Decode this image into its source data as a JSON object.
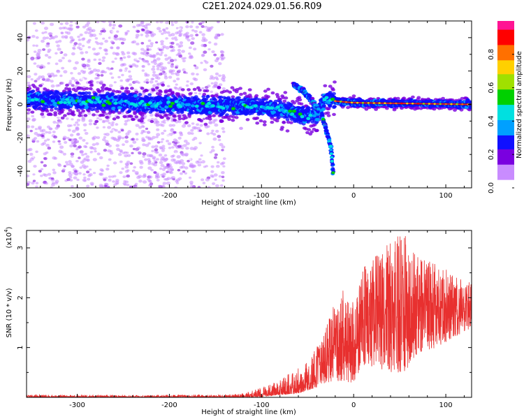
{
  "title": "C2E1.2024.029.01.56.R09",
  "chart_data": [
    {
      "type": "heatmap",
      "xlabel": "Height of straight line (km)",
      "ylabel": "Frequency (Hz)",
      "xlim": [
        -355,
        128
      ],
      "ylim": [
        -50,
        50
      ],
      "x_ticks": [
        -300,
        -200,
        -100,
        0,
        100
      ],
      "y_ticks": [
        -40,
        -20,
        0,
        20,
        40
      ],
      "colorbar": {
        "label": "Normalized spectral amplitude",
        "range": [
          0,
          1
        ],
        "ticks": [
          0.0,
          0.2,
          0.4,
          0.6,
          0.8
        ],
        "colors": [
          "#ffffff",
          "#c98cff",
          "#7a00e0",
          "#1010ff",
          "#00a0ff",
          "#00e0e0",
          "#00d000",
          "#a0e000",
          "#ffd000",
          "#ff7000",
          "#ff0000",
          "#ff1493"
        ]
      },
      "carrier_line": [
        {
          "x": -355,
          "y": 3
        },
        {
          "x": -300,
          "y": 2
        },
        {
          "x": -250,
          "y": 1
        },
        {
          "x": -200,
          "y": 0
        },
        {
          "x": -150,
          "y": -1
        },
        {
          "x": -120,
          "y": -1
        },
        {
          "x": -90,
          "y": -2
        },
        {
          "x": -70,
          "y": -4
        },
        {
          "x": -50,
          "y": -7
        },
        {
          "x": -40,
          "y": -6
        },
        {
          "x": -30,
          "y": 4
        },
        {
          "x": -20,
          "y": 2
        },
        {
          "x": 0,
          "y": 1
        },
        {
          "x": 128,
          "y": 0
        }
      ],
      "branches": [
        [
          {
            "x": -65,
            "y": 12
          },
          {
            "x": -55,
            "y": 8
          },
          {
            "x": -45,
            "y": 2
          },
          {
            "x": -38,
            "y": -4
          }
        ],
        [
          {
            "x": -35,
            "y": -5
          },
          {
            "x": -30,
            "y": -15
          },
          {
            "x": -25,
            "y": -25
          },
          {
            "x": -22,
            "y": -42
          }
        ]
      ]
    },
    {
      "type": "line",
      "xlabel": "Height of straight line (km)",
      "ylabel": "SNR (10 * v/v)",
      "scale_label": "(x10",
      "scale_exp": "4",
      "scale_close": ")",
      "xlim": [
        -355,
        128
      ],
      "ylim": [
        0,
        3.35
      ],
      "x_ticks": [
        -300,
        -200,
        -100,
        0,
        100
      ],
      "y_ticks": [
        1,
        2,
        3
      ],
      "line_color": "#e8302f",
      "envelope": [
        {
          "x": -355,
          "low": 0.0,
          "high": 0.05
        },
        {
          "x": -200,
          "low": 0.0,
          "high": 0.05
        },
        {
          "x": -150,
          "low": 0.0,
          "high": 0.05
        },
        {
          "x": -120,
          "low": 0.0,
          "high": 0.08
        },
        {
          "x": -100,
          "low": 0.01,
          "high": 0.2
        },
        {
          "x": -80,
          "low": 0.05,
          "high": 0.35
        },
        {
          "x": -60,
          "low": 0.08,
          "high": 0.6
        },
        {
          "x": -40,
          "low": 0.2,
          "high": 1.0
        },
        {
          "x": -30,
          "low": 0.3,
          "high": 1.5
        },
        {
          "x": -20,
          "low": 0.3,
          "high": 1.9
        },
        {
          "x": -10,
          "low": 0.3,
          "high": 2.2
        },
        {
          "x": 0,
          "low": 0.3,
          "high": 1.9
        },
        {
          "x": 10,
          "low": 0.6,
          "high": 2.6
        },
        {
          "x": 25,
          "low": 0.6,
          "high": 2.9
        },
        {
          "x": 40,
          "low": 0.5,
          "high": 3.2
        },
        {
          "x": 55,
          "low": 0.5,
          "high": 3.3
        },
        {
          "x": 70,
          "low": 0.9,
          "high": 2.8
        },
        {
          "x": 90,
          "low": 1.0,
          "high": 2.7
        },
        {
          "x": 110,
          "low": 1.2,
          "high": 2.5
        },
        {
          "x": 128,
          "low": 1.4,
          "high": 2.3
        }
      ]
    }
  ]
}
